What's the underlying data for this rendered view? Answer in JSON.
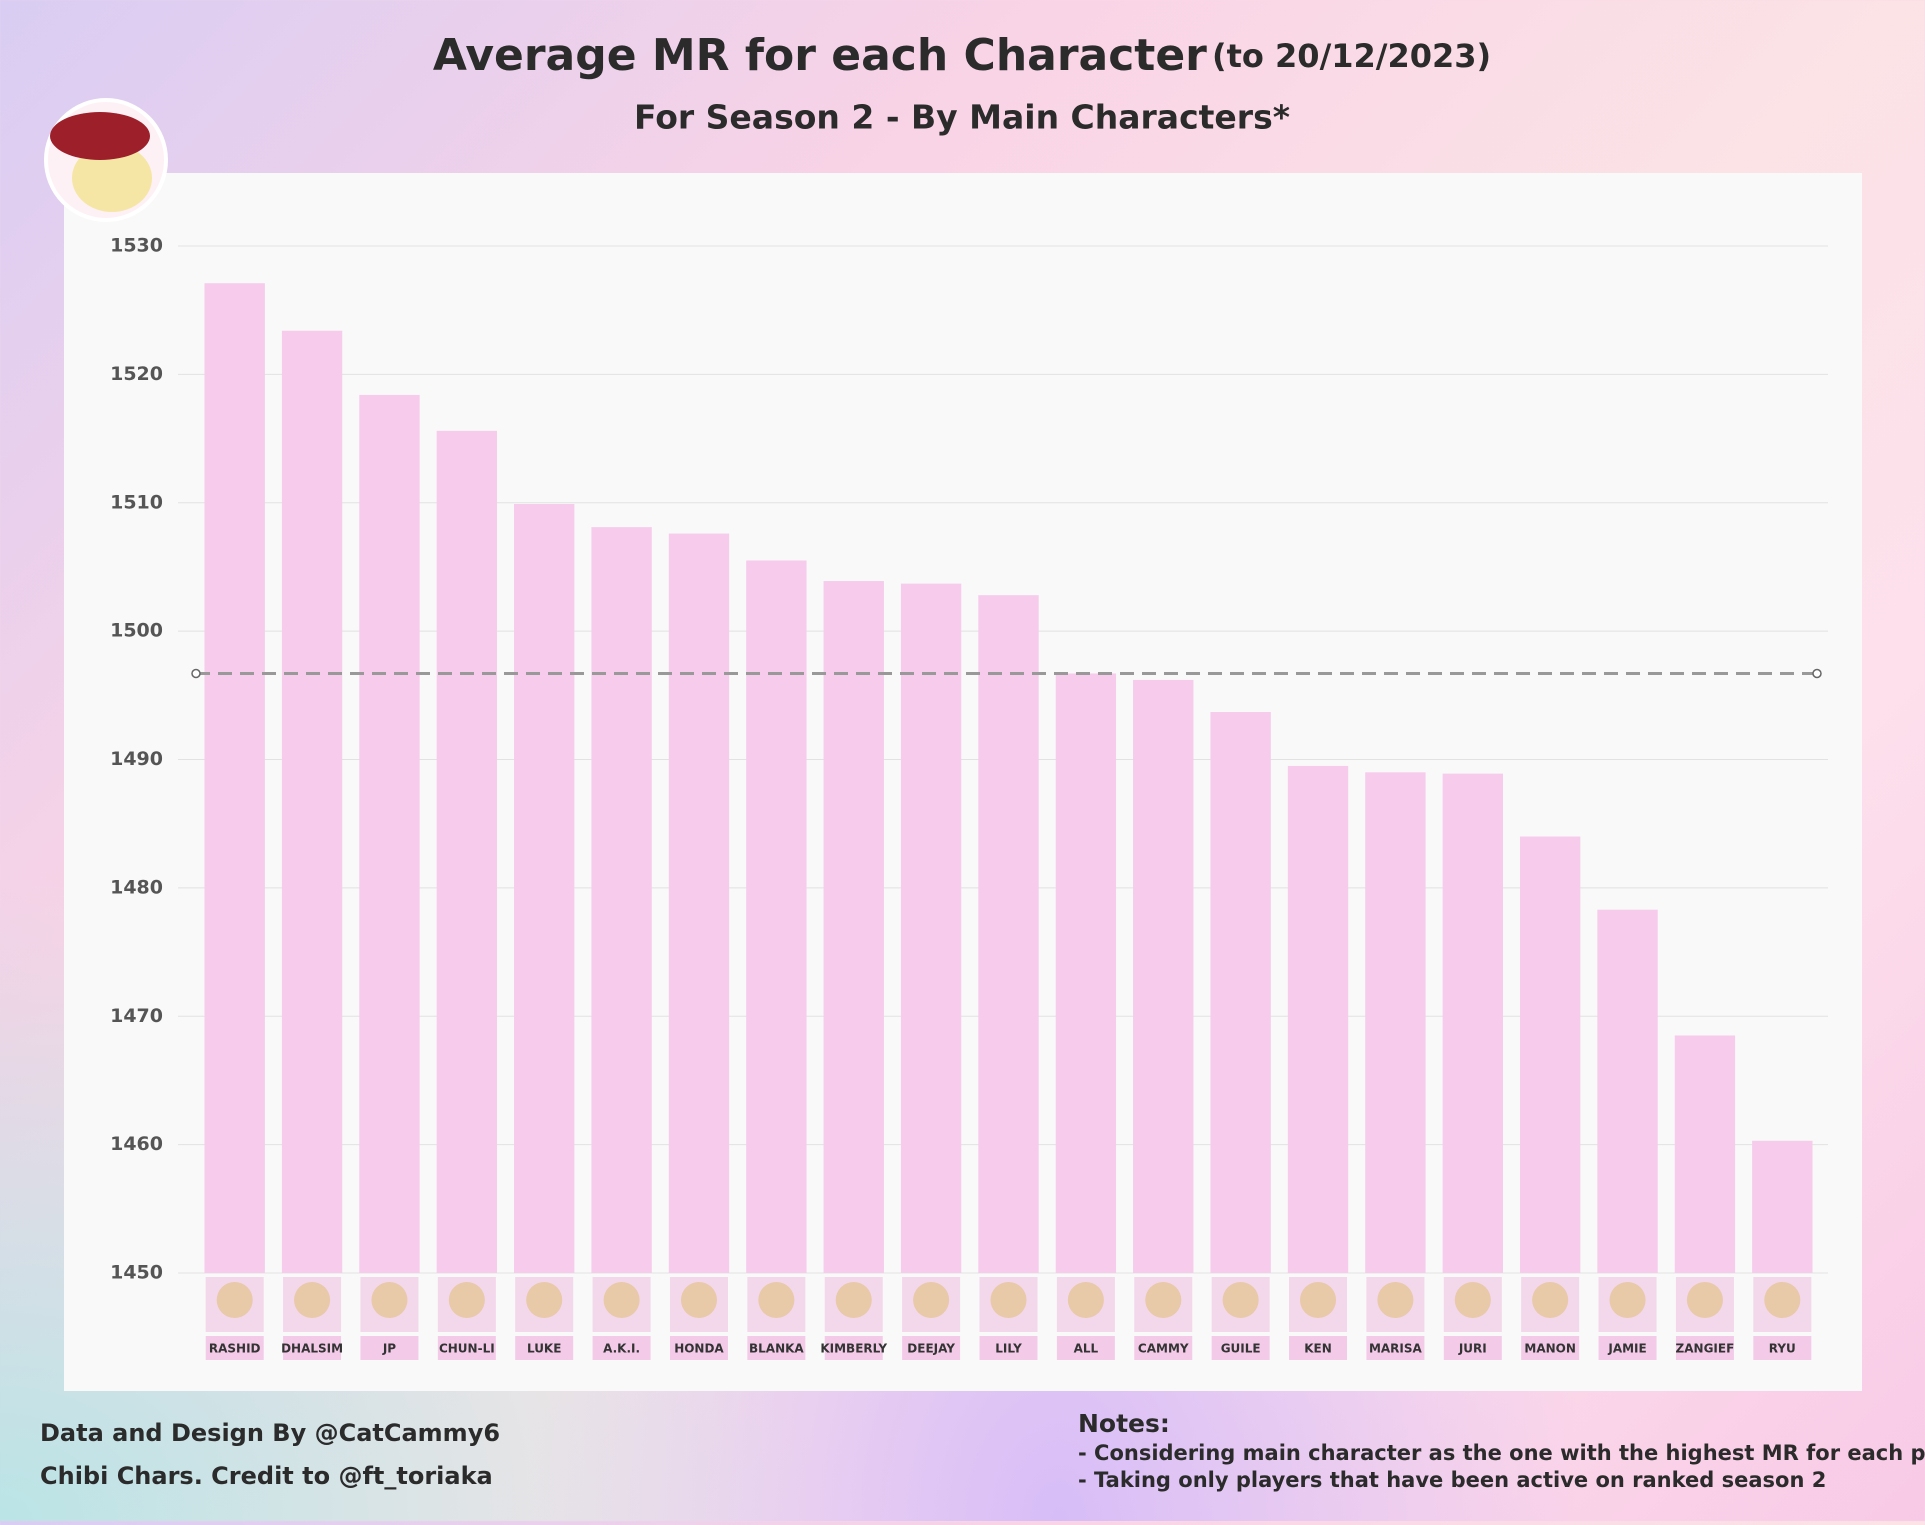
{
  "chart_data": {
    "type": "bar",
    "title": "Average MR for each Character",
    "title_note": "(to 20/12/2023)",
    "subtitle": "For Season 2 - By Main Characters*",
    "categories": [
      "RASHID",
      "DHALSIM",
      "JP",
      "CHUN-LI",
      "LUKE",
      "A.K.I.",
      "HONDA",
      "BLANKA",
      "KIMBERLY",
      "DEEJAY",
      "LILY",
      "ALL",
      "CAMMY",
      "GUILE",
      "KEN",
      "MARISA",
      "JURI",
      "MANON",
      "JAMIE",
      "ZANGIEF",
      "RYU"
    ],
    "values": [
      1527.1,
      1523.4,
      1518.4,
      1515.6,
      1509.9,
      1508.1,
      1507.6,
      1505.5,
      1503.9,
      1503.7,
      1502.8,
      1496.7,
      1496.2,
      1493.7,
      1489.5,
      1489.0,
      1488.9,
      1484.0,
      1478.3,
      1468.5,
      1460.3
    ],
    "color": "#f6cbec",
    "reference_line": 1496.7,
    "ylim": [
      1450,
      1530
    ],
    "yticks": [
      1450,
      1460,
      1470,
      1480,
      1490,
      1500,
      1510,
      1520,
      1530
    ],
    "grid": true,
    "credits": [
      "Data and Design By @CatCammy6",
      "Chibi Chars. Credit to @ft_toriaka"
    ],
    "notes_title": "Notes:",
    "notes": [
      "- Considering main character as the one with the highest MR for each player",
      "- Taking only players that have been active on ranked season 2"
    ]
  }
}
